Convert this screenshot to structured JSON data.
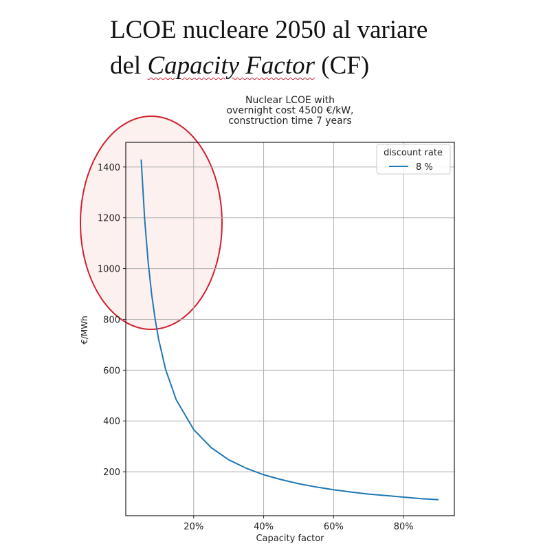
{
  "slide": {
    "title_line1": "LCOE nucleare 2050 al variare",
    "title_line2_prefix": "del ",
    "title_line2_italic": "Capacity Factor",
    "title_line2_suffix": " (CF)"
  },
  "chart_data": {
    "type": "line",
    "title_lines": [
      "Nuclear LCOE with",
      "overnight cost 4500 €/kW,",
      "construction time 7 years"
    ],
    "xlabel": "Capacity factor",
    "ylabel": "€/MWh",
    "xlim": [
      0.6,
      94.5
    ],
    "ylim": [
      27,
      1497
    ],
    "xticks": [
      20,
      40,
      60,
      80
    ],
    "xtick_labels": [
      "20%",
      "40%",
      "60%",
      "80%"
    ],
    "yticks": [
      200,
      400,
      600,
      800,
      1000,
      1200,
      1400
    ],
    "ytick_labels": [
      "200",
      "400",
      "600",
      "800",
      "1000",
      "1200",
      "1400"
    ],
    "grid": true,
    "legend": {
      "title": "discount rate",
      "placement": "top-right"
    },
    "series": [
      {
        "name": "8 %",
        "color": "#1f77b4",
        "x": [
          5,
          6,
          7,
          8,
          9,
          10,
          12,
          15,
          20,
          25,
          30,
          35,
          40,
          45,
          50,
          55,
          60,
          65,
          70,
          75,
          80,
          85,
          90
        ],
        "y": [
          1429,
          1193,
          1024,
          897,
          799,
          720,
          602,
          484,
          366,
          295,
          247,
          214,
          188,
          169,
          153,
          140,
          129,
          120,
          112,
          106,
          100,
          94,
          90
        ]
      }
    ],
    "annotation": {
      "shape": "ellipse",
      "stroke": "#d0202e",
      "fill": "#fdf1ef",
      "highlights_x_range": [
        0,
        28
      ]
    }
  }
}
